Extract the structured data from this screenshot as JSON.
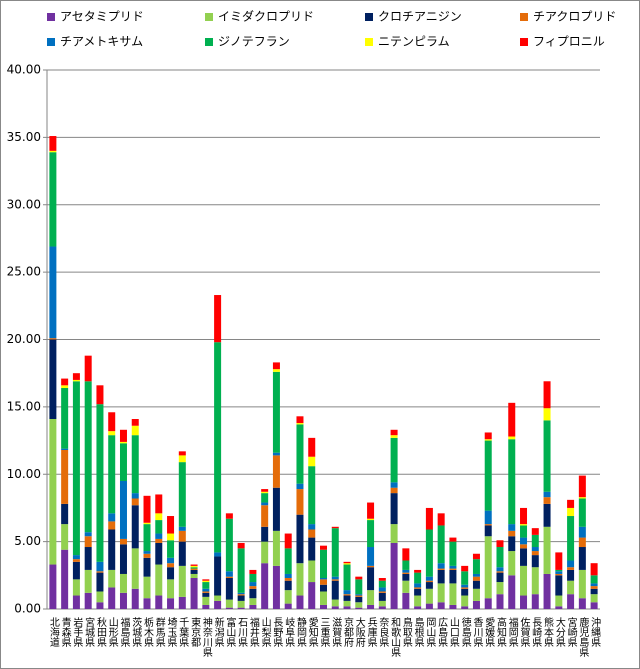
{
  "chart_data": {
    "type": "stacked_bar",
    "categories": [
      "北海道",
      "青森県",
      "岩手県",
      "宮城県",
      "秋田県",
      "山形県",
      "福島県",
      "茨城県",
      "栃木県",
      "群馬県",
      "埼玉県",
      "千葉県",
      "東京都",
      "神奈川県",
      "新潟県",
      "富山県",
      "石川県",
      "福井県",
      "山梨県",
      "長野県",
      "岐阜県",
      "静岡県",
      "愛知県",
      "三重県",
      "滋賀県",
      "京都府",
      "大阪府",
      "兵庫県",
      "奈良県",
      "和歌山県",
      "鳥取県",
      "島根県",
      "岡山県",
      "広島県",
      "山口県",
      "徳島県",
      "香川県",
      "愛媛県",
      "高知県",
      "福岡県",
      "佐賀県",
      "長崎県",
      "熊本県",
      "大分県",
      "宮崎県",
      "鹿児島県",
      "沖縄県"
    ],
    "series": [
      {
        "name": "アセタミプリド",
        "color": "#7030a0",
        "values": [
          3.3,
          4.4,
          1.0,
          1.2,
          0.5,
          1.6,
          1.2,
          1.5,
          0.8,
          1.0,
          0.8,
          0.9,
          2.3,
          0.3,
          0.6,
          0.1,
          0.1,
          0.3,
          3.4,
          3.2,
          0.4,
          1.0,
          2.0,
          0.3,
          0.2,
          0.2,
          0.1,
          0.3,
          0.2,
          4.9,
          1.2,
          0.2,
          0.4,
          0.5,
          0.3,
          0.2,
          0.6,
          0.8,
          1.1,
          2.5,
          1.0,
          1.1,
          2.6,
          0.2,
          1.1,
          0.8,
          0.5
        ]
      },
      {
        "name": "イミダクロプリド",
        "color": "#92d050",
        "values": [
          10.8,
          1.9,
          1.2,
          1.7,
          0.8,
          1.3,
          1.4,
          3.0,
          1.6,
          2.3,
          1.4,
          2.3,
          0.3,
          0.6,
          0.4,
          0.6,
          0.5,
          0.5,
          1.6,
          2.6,
          1.0,
          2.4,
          1.6,
          1.0,
          0.5,
          0.4,
          0.4,
          1.1,
          0.4,
          1.4,
          0.9,
          0.8,
          1.1,
          1.4,
          1.6,
          0.8,
          0.9,
          4.6,
          0.9,
          1.8,
          2.2,
          2.0,
          3.5,
          0.8,
          1.0,
          2.1,
          0.6
        ]
      },
      {
        "name": "クロチアニジン",
        "color": "#002060",
        "values": [
          5.9,
          1.5,
          1.3,
          1.7,
          1.4,
          3.0,
          2.2,
          3.2,
          1.4,
          1.6,
          0.9,
          1.8,
          0.3,
          0.3,
          2.9,
          1.6,
          0.4,
          0.7,
          1.1,
          3.2,
          0.7,
          3.6,
          1.7,
          0.5,
          1.4,
          0.4,
          0.4,
          1.7,
          0.6,
          2.3,
          0.5,
          0.5,
          0.5,
          1.0,
          1.0,
          0.5,
          0.6,
          0.8,
          0.7,
          1.1,
          1.3,
          0.9,
          1.7,
          1.5,
          0.8,
          1.7,
          0.4
        ]
      },
      {
        "name": "チアクロプリド",
        "color": "#e46c0a",
        "values": [
          0.1,
          4.0,
          0.2,
          0.8,
          0.1,
          0.6,
          0.4,
          0.5,
          0.3,
          0.3,
          0.3,
          0.8,
          0.1,
          0.1,
          0,
          0.1,
          0.1,
          0.2,
          1.6,
          2.4,
          0.2,
          1.9,
          0.6,
          0.4,
          0.1,
          0.1,
          0.1,
          0.1,
          0.1,
          0.4,
          0.1,
          0.1,
          0.1,
          0.1,
          0.1,
          0.1,
          0.3,
          0.1,
          0.1,
          0.4,
          0.3,
          0.3,
          0.5,
          0.1,
          0.2,
          0.7,
          0.2
        ]
      },
      {
        "name": "チアメトキサム",
        "color": "#0070c0",
        "values": [
          6.8,
          0.1,
          0.3,
          0.3,
          0.7,
          0.6,
          4.3,
          0.4,
          0.2,
          0.4,
          0.4,
          0.3,
          0,
          0.2,
          0.3,
          0.4,
          0.1,
          0.3,
          0.2,
          0.2,
          0.3,
          0.4,
          0.4,
          0.1,
          0.2,
          0.3,
          0.1,
          1.4,
          0.3,
          0.4,
          0.2,
          0.3,
          0.3,
          0.4,
          0.2,
          0.2,
          0.2,
          1.0,
          0.3,
          0.5,
          0.5,
          0.3,
          0.4,
          0.2,
          0.5,
          0.8,
          0.2
        ]
      },
      {
        "name": "ジノテフラン",
        "color": "#00b050",
        "values": [
          7.0,
          4.5,
          12.9,
          11.2,
          11.7,
          5.8,
          2.8,
          4.3,
          2.0,
          1.0,
          1.3,
          4.8,
          0.1,
          0.5,
          15.6,
          3.9,
          3.3,
          0.6,
          0.7,
          6.0,
          1.9,
          4.4,
          4.3,
          2.1,
          3.6,
          1.9,
          1.1,
          2.0,
          0.5,
          3.3,
          0.7,
          0.8,
          3.5,
          2.8,
          1.8,
          1.0,
          1.1,
          5.2,
          1.5,
          6.3,
          0.9,
          0.9,
          5.3,
          0.1,
          3.3,
          2.1,
          0.6
        ]
      },
      {
        "name": "ニテンピラム",
        "color": "#ffff00",
        "values": [
          0.1,
          0.2,
          0.1,
          0,
          0,
          0.3,
          0.1,
          0.7,
          0.1,
          0.5,
          0.5,
          0.5,
          0.1,
          0.1,
          0,
          0,
          0,
          0,
          0.1,
          0.2,
          0,
          0.1,
          0.7,
          0,
          0,
          0.1,
          0,
          0.1,
          0,
          0.2,
          0,
          0,
          0,
          0,
          0,
          0,
          0,
          0.1,
          0,
          0.2,
          0.1,
          0,
          0.9,
          0,
          0.6,
          0.1,
          0
        ]
      },
      {
        "name": "フィプロニル",
        "color": "#ff0000",
        "values": [
          1.1,
          0.5,
          0.5,
          1.9,
          1.4,
          1.4,
          0.9,
          0.5,
          2.0,
          1.4,
          1.3,
          0.3,
          0.1,
          0.1,
          3.5,
          0.4,
          0.4,
          0.3,
          0.2,
          0.5,
          1.1,
          0.5,
          1.4,
          0.3,
          0.1,
          0.1,
          0.2,
          1.2,
          0.2,
          0.4,
          0.9,
          0.2,
          1.6,
          0.9,
          0.3,
          0.4,
          0.4,
          0.5,
          0.5,
          2.5,
          1.2,
          0.5,
          2.0,
          1.3,
          0.6,
          1.6,
          0.9
        ]
      }
    ],
    "ylim": [
      0,
      40
    ],
    "yticks": [
      {
        "value": 0,
        "label": "0.00"
      },
      {
        "value": 5,
        "label": "5.00"
      },
      {
        "value": 10,
        "label": "10.00"
      },
      {
        "value": 15,
        "label": "15.00"
      },
      {
        "value": 20,
        "label": "20.00"
      },
      {
        "value": 25,
        "label": "25.00"
      },
      {
        "value": 30,
        "label": "30.00"
      },
      {
        "value": 35,
        "label": "35.00"
      },
      {
        "value": 40,
        "label": "40.00"
      }
    ],
    "grid": true,
    "legend": "top"
  }
}
